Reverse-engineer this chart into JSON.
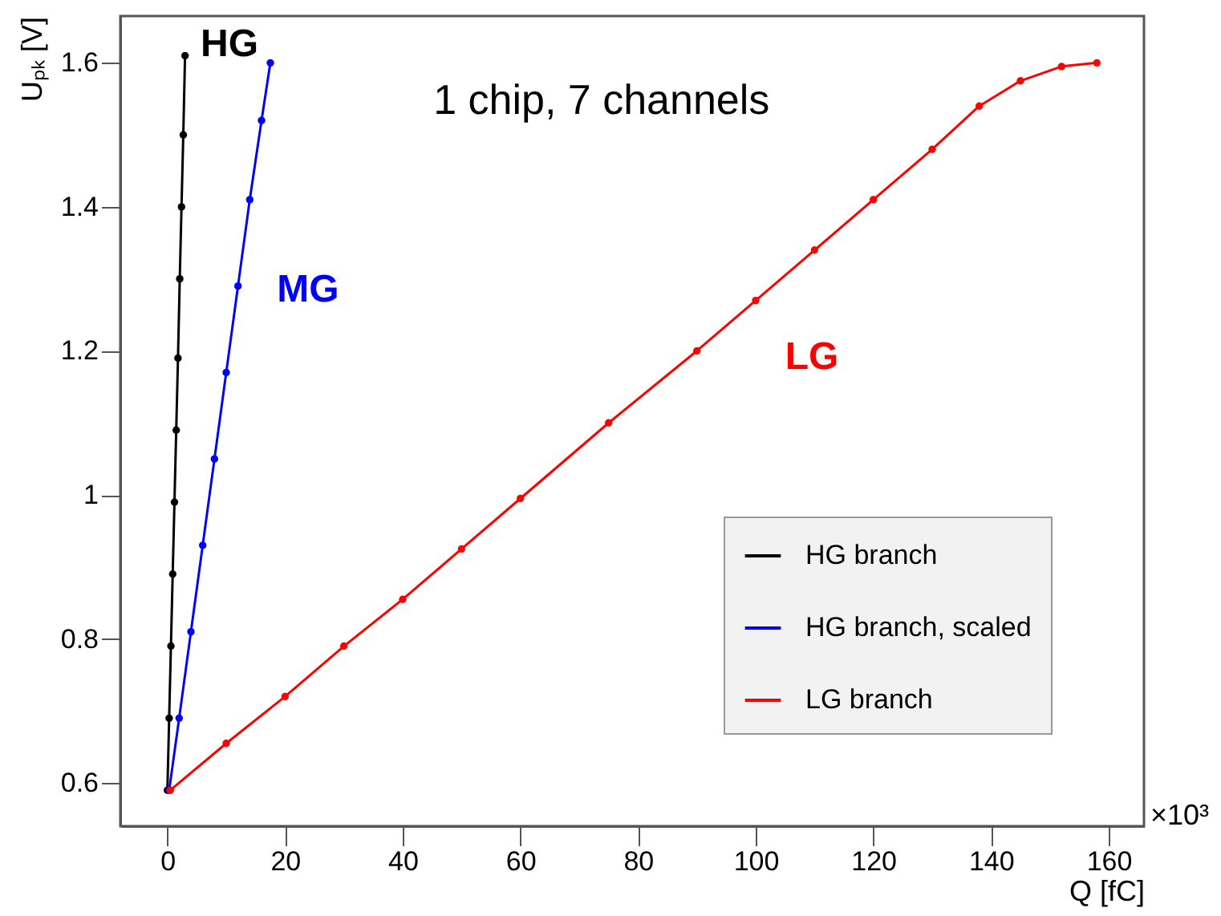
{
  "chart_data": {
    "type": "line",
    "xlabel": "Q [fC]",
    "ylabel": "Uₚₖ [V]",
    "xlim": [
      -8,
      166
    ],
    "ylim": [
      0.54,
      1.665
    ],
    "xticks": [
      0,
      20,
      40,
      60,
      80,
      100,
      120,
      140,
      160
    ],
    "yticks": [
      0.6,
      0.8,
      1,
      1.2,
      1.4,
      1.6
    ],
    "marker": "circle",
    "legend": "bottom right",
    "grid": false,
    "annotations": [
      "HG",
      "MG",
      "LG",
      "1 chip, 7 channels",
      "×10³"
    ],
    "series": [
      {
        "name": "HG branch",
        "color": "#000000",
        "x": [
          0,
          0.3,
          0.6,
          0.9,
          1.2,
          1.5,
          1.8,
          2.1,
          2.4,
          2.7,
          3
        ],
        "values": [
          0.59,
          0.69,
          0.79,
          0.89,
          0.99,
          1.09,
          1.19,
          1.3,
          1.4,
          1.5,
          1.61
        ]
      },
      {
        "name": "HG branch, scaled",
        "color": "#0000ff",
        "x": [
          0.3,
          2,
          4,
          6,
          8,
          10,
          12,
          14,
          16,
          17.5
        ],
        "values": [
          0.59,
          0.69,
          0.81,
          0.93,
          1.05,
          1.17,
          1.29,
          1.41,
          1.52,
          1.6
        ]
      },
      {
        "name": "LG branch",
        "color": "#ff0000",
        "x": [
          0.5,
          10,
          20,
          30,
          40,
          50,
          60,
          75,
          90,
          100,
          110,
          120,
          130,
          138,
          145,
          152,
          158
        ],
        "values": [
          0.59,
          0.655,
          0.72,
          0.79,
          0.855,
          0.925,
          0.995,
          1.1,
          1.2,
          1.27,
          1.34,
          1.41,
          1.48,
          1.54,
          1.575,
          1.595,
          1.6
        ]
      }
    ]
  }
}
